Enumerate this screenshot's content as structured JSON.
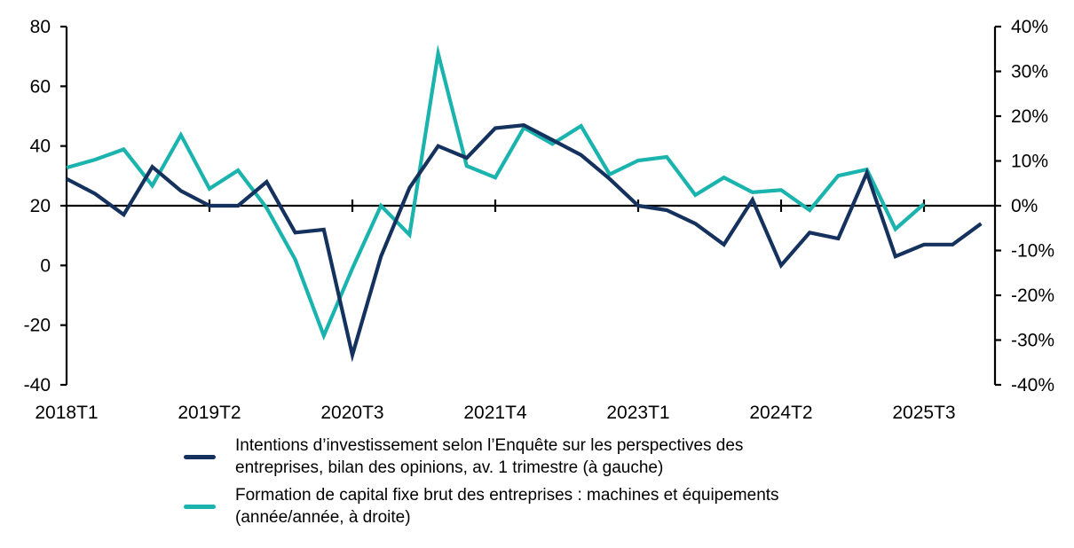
{
  "chart_data": {
    "type": "line",
    "title": "",
    "xlabel": "",
    "ylabel_left": "",
    "ylabel_right": "",
    "x": [
      "2018T1",
      "2018T2",
      "2018T3",
      "2018T4",
      "2019T1",
      "2019T2",
      "2019T3",
      "2019T4",
      "2020T1",
      "2020T2",
      "2020T3",
      "2020T4",
      "2021T1",
      "2021T2",
      "2021T3",
      "2021T4",
      "2022T1",
      "2022T2",
      "2022T3",
      "2022T4",
      "2023T1",
      "2023T2",
      "2023T3",
      "2023T4",
      "2024T1",
      "2024T2",
      "2024T3",
      "2024T4",
      "2025T1",
      "2025T2",
      "2025T3",
      "2025T4",
      "2026T1"
    ],
    "x_tick_labels": [
      "2018T1",
      "2019T2",
      "2020T3",
      "2021T4",
      "2023T1",
      "2024T2",
      "2025T3"
    ],
    "y_left": {
      "ylim": [
        -40,
        80
      ],
      "ticks": [
        "80",
        "60",
        "40",
        "20",
        "0",
        "-20",
        "-40"
      ],
      "tick_values": [
        80,
        60,
        40,
        20,
        0,
        -20,
        -40
      ]
    },
    "y_right": {
      "ylim": [
        -40,
        40
      ],
      "ticks": [
        "40%",
        "30%",
        "20%",
        "10%",
        "0%",
        "-10%",
        "-20%",
        "-30%",
        "-40%"
      ],
      "tick_values": [
        40,
        30,
        20,
        10,
        0,
        -10,
        -20,
        -30,
        -40
      ]
    },
    "x_axis_crosses_left_at": 20,
    "grid": false,
    "legend_position": "bottom",
    "series": [
      {
        "name": "Intentions d’investissement selon l’Enquête sur les perspectives des entreprises, bilan des opinions, av. 1 trimestre (à gauche)",
        "legend_lines": [
          "Intentions d’investissement selon l’Enquête sur les perspectives des",
          "entreprises, bilan des opinions, av. 1 trimestre (à gauche)"
        ],
        "axis": "left",
        "color": "#15325e",
        "values": [
          29,
          24,
          17,
          33,
          25,
          20,
          20,
          28,
          11,
          12,
          -30,
          3,
          26,
          40,
          36,
          46,
          47,
          42,
          37,
          29,
          20,
          18.5,
          14,
          7,
          22,
          0,
          11,
          9,
          31,
          3,
          7,
          7,
          14
        ]
      },
      {
        "name": "Formation de capital fixe brut des entreprises : machines et équipements (année/année, à droite)",
        "legend_lines": [
          "Formation de capital fixe brut des entreprises : machines et équipements",
          "(année/année, à droite)"
        ],
        "axis": "right",
        "color": "#1ab3ae",
        "values": [
          8.5,
          10.3,
          12.6,
          4.5,
          15.8,
          3.8,
          7.9,
          -0.5,
          -12,
          -29,
          -14,
          0,
          -6.5,
          34,
          8.9,
          6.3,
          17.4,
          13.8,
          17.8,
          7,
          10.1,
          10.9,
          2.4,
          6.3,
          3,
          3.5,
          -1,
          6.7,
          8.1,
          -5.2,
          0.4,
          null,
          null
        ]
      }
    ]
  }
}
